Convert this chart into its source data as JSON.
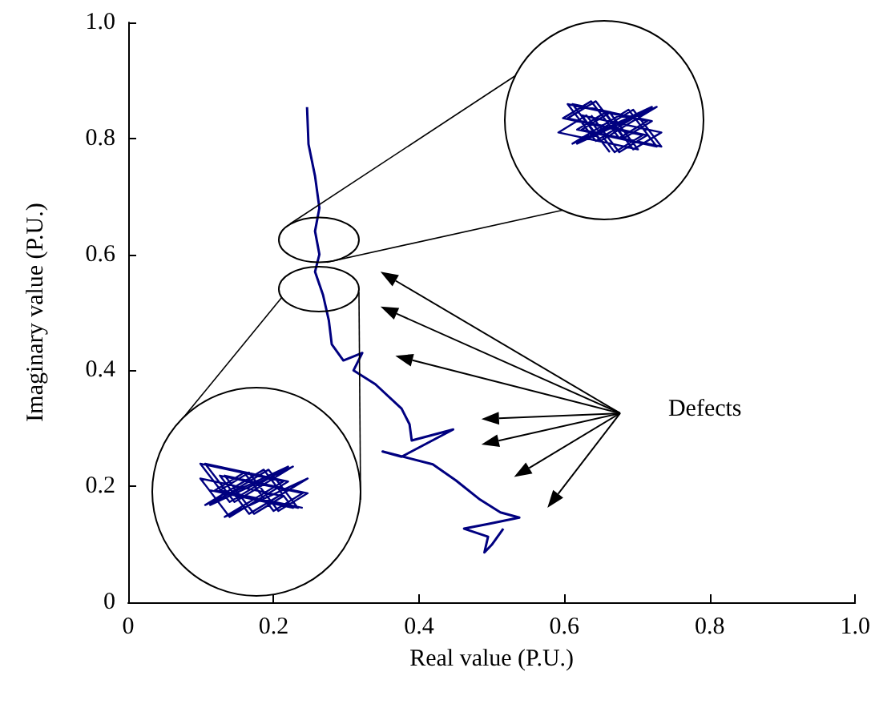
{
  "chart_data": {
    "type": "line",
    "xlabel": "Real value (P.U.)",
    "ylabel": "Imaginary value (P.U.)",
    "xlim": [
      0,
      1
    ],
    "ylim": [
      0,
      1
    ],
    "xticks": [
      0,
      0.2,
      0.4,
      0.6,
      0.8,
      {
        "value": 1,
        "label": "1.0"
      }
    ],
    "yticks": [
      0,
      0.2,
      0.4,
      0.6,
      0.8,
      {
        "value": 1,
        "label": "1.0"
      }
    ],
    "grid": false,
    "marker": "none",
    "line_style": "solid",
    "annotations": [
      "Defects"
    ],
    "series": [
      {
        "color": "#000080",
        "x": [
          0.246,
          0.248,
          0.257,
          0.263,
          0.257,
          0.263,
          0.257,
          0.268,
          0.276,
          0.28,
          0.296,
          0.322,
          0.31,
          0.34,
          0.376,
          0.387,
          0.39,
          0.447,
          0.376,
          0.35,
          0.419,
          0.451,
          0.484,
          0.512,
          0.538,
          0.495,
          0.462,
          0.495,
          0.49,
          0.5,
          0.516
        ],
        "values": [
          0.854,
          0.79,
          0.735,
          0.68,
          0.64,
          0.6,
          0.57,
          0.53,
          0.486,
          0.445,
          0.417,
          0.43,
          0.4,
          0.376,
          0.334,
          0.307,
          0.279,
          0.298,
          0.251,
          0.26,
          0.238,
          0.21,
          0.177,
          0.155,
          0.146,
          0.135,
          0.127,
          0.113,
          0.086,
          0.099,
          0.127
        ]
      }
    ]
  }
}
